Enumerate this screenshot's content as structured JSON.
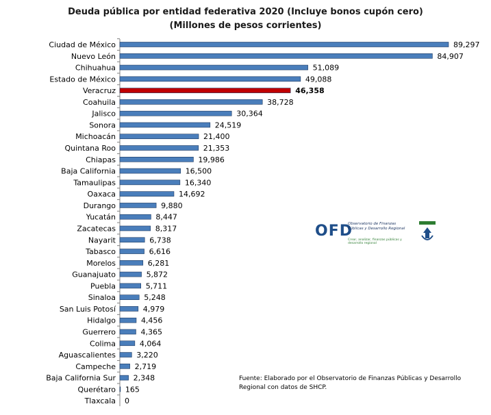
{
  "chart_data": {
    "type": "bar",
    "orientation": "horizontal",
    "title": "Deuda pública por entidad federativa 2020 (Incluye bonos cupón cero)",
    "subtitle": "(Millones de pesos corrientes)",
    "categories": [
      "Ciudad de México",
      "Nuevo León",
      "Chihuahua",
      "Estado de México",
      "Veracruz",
      "Coahuila",
      "Jalisco",
      "Sonora",
      "Michoacán",
      "Quintana Roo",
      "Chiapas",
      "Baja California",
      "Tamaulipas",
      "Oaxaca",
      "Durango",
      "Yucatán",
      "Zacatecas",
      "Nayarit",
      "Tabasco",
      "Morelos",
      "Guanajuato",
      "Puebla",
      "Sinaloa",
      "San Luis Potosí",
      "Hidalgo",
      "Guerrero",
      "Colima",
      "Aguascalientes",
      "Campeche",
      "Baja California Sur",
      "Querétaro",
      "Tlaxcala"
    ],
    "values": [
      89297,
      84907,
      51089,
      49088,
      46358,
      38728,
      30364,
      24519,
      21400,
      21353,
      19986,
      16500,
      16340,
      14692,
      9880,
      8447,
      8317,
      6738,
      6616,
      6281,
      5872,
      5711,
      5248,
      4979,
      4456,
      4365,
      4064,
      3220,
      2719,
      2348,
      165,
      0
    ],
    "value_labels": [
      "89,297",
      "84,907",
      "51,089",
      "49,088",
      "46,358",
      "38,728",
      "30,364",
      "24,519",
      "21,400",
      "21,353",
      "19,986",
      "16,500",
      "16,340",
      "14,692",
      "9,880",
      "8,447",
      "8,317",
      "6,738",
      "6,616",
      "6,281",
      "5,872",
      "5,711",
      "5,248",
      "4,979",
      "4,456",
      "4,365",
      "4,064",
      "3,220",
      "2,719",
      "2,348",
      "165",
      "0"
    ],
    "highlight": "Veracruz",
    "colors": {
      "bar": "#4a7ebb",
      "highlight": "#c00000",
      "bar_edge": "#1f3a60"
    },
    "xlim": [
      0,
      89297
    ],
    "grid": false
  },
  "logo": {
    "name": "OFD",
    "subtitle": "Observatorio de Finanzas Públicas y Desarrollo Regional",
    "tagline": "Crear, analizar, finanzas públicas y desarrollo regional"
  },
  "source": "Fuente: Elaborado por el Observatorio de  Finanzas Públicas y Desarrollo Regional con datos de SHCP."
}
